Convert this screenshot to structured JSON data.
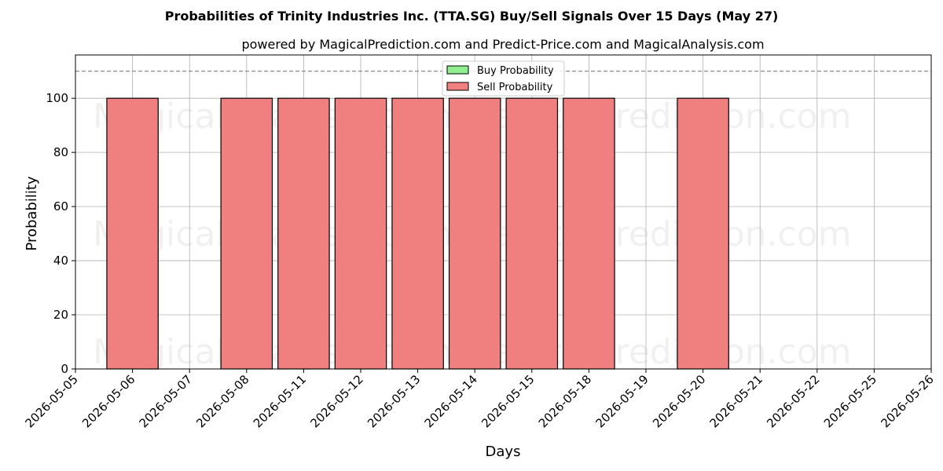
{
  "chart_data": {
    "type": "bar",
    "title": "Probabilities of Trinity Industries Inc. (TTA.SG) Buy/Sell Signals Over 15 Days (May 27)",
    "subtitle": "powered by MagicalPrediction.com and Predict-Price.com and MagicalAnalysis.com",
    "xlabel": "Days",
    "ylabel": "Probability",
    "ylim": [
      0,
      116
    ],
    "yticks": [
      0,
      20,
      40,
      60,
      80,
      100
    ],
    "threshold_line": 110,
    "grid": true,
    "legend_placement": "top-center",
    "categories": [
      "2026-05-05",
      "2026-05-06",
      "2026-05-07",
      "2026-05-08",
      "2026-05-11",
      "2026-05-12",
      "2026-05-13",
      "2026-05-14",
      "2026-05-15",
      "2026-05-18",
      "2026-05-19",
      "2026-05-20",
      "2026-05-21",
      "2026-05-22",
      "2026-05-25",
      "2026-05-26"
    ],
    "series": [
      {
        "name": "Buy Probability",
        "color": "#90ee90",
        "values": [
          0,
          0,
          0,
          0,
          0,
          0,
          0,
          0,
          0,
          0,
          0,
          0,
          0,
          0,
          0,
          0
        ]
      },
      {
        "name": "Sell Probability",
        "color": "#f08080",
        "values": [
          0,
          100,
          0,
          100,
          100,
          100,
          100,
          100,
          100,
          100,
          0,
          100,
          0,
          0,
          0,
          0
        ]
      }
    ],
    "watermarks": [
      "MagicalAnalysis.com",
      "MagicalPrediction.com"
    ]
  }
}
